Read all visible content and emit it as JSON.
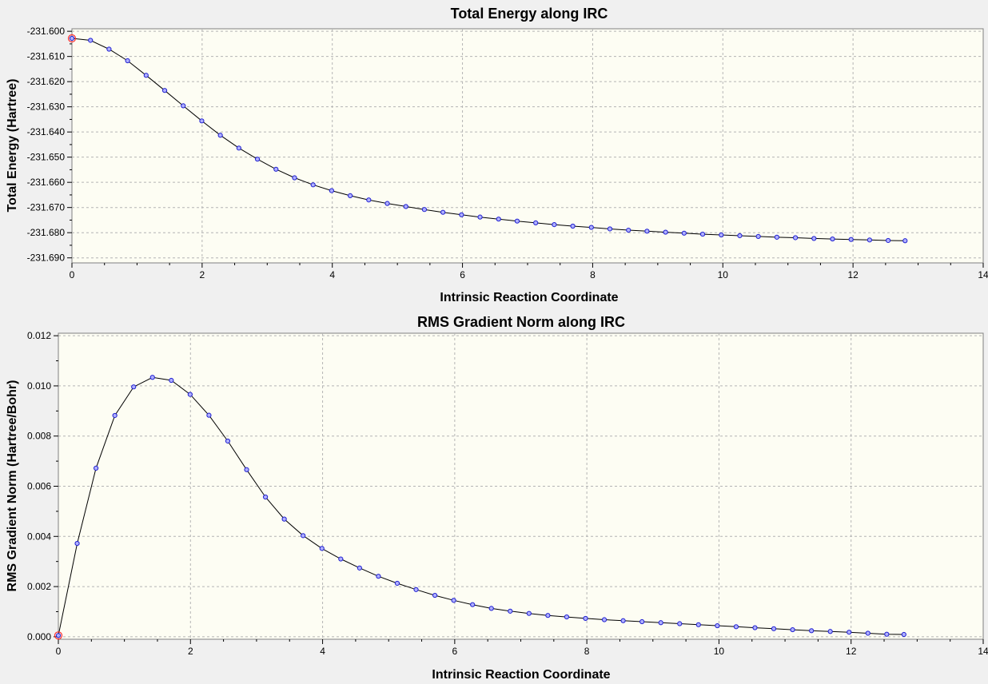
{
  "charts": [
    {
      "title": "Total Energy along IRC",
      "xlabel": "Intrinsic Reaction Coordinate",
      "ylabel": "Total Energy (Hartree)"
    },
    {
      "title": "RMS Gradient Norm along IRC",
      "xlabel": "Intrinsic Reaction Coordinate",
      "ylabel": "RMS Gradient Norm (Hartree/Bohr)"
    }
  ],
  "colors": {
    "plot_bg": "#fdfdf3",
    "window_bg": "#f0f0f0",
    "grid": "#b4b4b4",
    "line": "#000000",
    "marker_fill": "#b0b0ff",
    "marker_stroke": "#2020d0",
    "highlight_marker": "#ff3030"
  },
  "chart_data": [
    {
      "type": "line",
      "title": "Total Energy along IRC",
      "xlabel": "Intrinsic Reaction Coordinate",
      "ylabel": "Total Energy (Hartree)",
      "xlim": [
        0,
        14
      ],
      "ylim": [
        -231.692,
        -231.599
      ],
      "grid": true,
      "decimals": 3,
      "x_ticks": [
        "0",
        "2",
        "4",
        "6",
        "8",
        "10",
        "12",
        "14"
      ],
      "y_ticks": [
        "-231.600",
        "-231.610",
        "-231.620",
        "-231.630",
        "-231.640",
        "-231.650",
        "-231.660",
        "-231.670",
        "-231.680",
        "-231.690"
      ],
      "x": [
        0,
        0.285,
        0.57,
        0.855,
        1.14,
        1.425,
        1.71,
        1.995,
        2.28,
        2.565,
        2.85,
        3.135,
        3.42,
        3.705,
        3.99,
        4.275,
        4.56,
        4.845,
        5.13,
        5.415,
        5.7,
        5.985,
        6.27,
        6.555,
        6.84,
        7.125,
        7.41,
        7.695,
        7.98,
        8.265,
        8.55,
        8.835,
        9.12,
        9.405,
        9.69,
        9.975,
        10.26,
        10.545,
        10.83,
        11.115,
        11.4,
        11.685,
        11.97,
        12.255,
        12.54,
        12.8
      ],
      "y": [
        -231.6028,
        -231.6036,
        -231.6071,
        -231.6117,
        -231.6175,
        -231.6235,
        -231.6296,
        -231.6356,
        -231.6413,
        -231.6464,
        -231.6508,
        -231.6548,
        -231.6582,
        -231.661,
        -231.6633,
        -231.6653,
        -231.667,
        -231.6684,
        -231.6696,
        -231.6708,
        -231.6719,
        -231.6729,
        -231.6738,
        -231.6746,
        -231.6754,
        -231.6761,
        -231.6768,
        -231.6774,
        -231.6779,
        -231.6785,
        -231.679,
        -231.6794,
        -231.6798,
        -231.6802,
        -231.6806,
        -231.6809,
        -231.6812,
        -231.6815,
        -231.6818,
        -231.682,
        -231.6823,
        -231.6825,
        -231.6827,
        -231.6829,
        -231.6831,
        -231.6832
      ],
      "highlight_index": 0
    },
    {
      "type": "line",
      "title": "RMS Gradient Norm along IRC",
      "xlabel": "Intrinsic Reaction Coordinate",
      "ylabel": "RMS Gradient Norm (Hartree/Bohr)",
      "xlim": [
        0,
        14
      ],
      "ylim": [
        -0.0001,
        0.0121
      ],
      "grid": true,
      "decimals": 3,
      "x_ticks": [
        "0",
        "2",
        "4",
        "6",
        "8",
        "10",
        "12",
        "14"
      ],
      "y_ticks": [
        "0.000",
        "0.002",
        "0.004",
        "0.006",
        "0.008",
        "0.010",
        "0.012"
      ],
      "x": [
        0,
        0.285,
        0.57,
        0.855,
        1.14,
        1.425,
        1.71,
        1.995,
        2.28,
        2.565,
        2.85,
        3.135,
        3.42,
        3.705,
        3.99,
        4.275,
        4.56,
        4.845,
        5.13,
        5.415,
        5.7,
        5.985,
        6.27,
        6.555,
        6.84,
        7.125,
        7.41,
        7.695,
        7.98,
        8.265,
        8.55,
        8.835,
        9.12,
        9.405,
        9.69,
        9.975,
        10.26,
        10.545,
        10.83,
        11.115,
        11.4,
        11.685,
        11.97,
        12.255,
        12.54,
        12.8
      ],
      "y": [
        5e-05,
        0.00372,
        0.00672,
        0.00882,
        0.00996,
        0.01034,
        0.01022,
        0.00966,
        0.00883,
        0.0078,
        0.00666,
        0.00557,
        0.00469,
        0.00403,
        0.00352,
        0.0031,
        0.00274,
        0.00241,
        0.00213,
        0.00188,
        0.00165,
        0.00145,
        0.00128,
        0.00113,
        0.00102,
        0.00093,
        0.00085,
        0.00079,
        0.00073,
        0.00068,
        0.00064,
        0.0006,
        0.00056,
        0.00052,
        0.00048,
        0.00044,
        0.0004,
        0.00036,
        0.00032,
        0.00028,
        0.00024,
        0.00021,
        0.00018,
        0.00014,
        0.0001,
        9e-05
      ],
      "highlight_index": 0
    }
  ]
}
